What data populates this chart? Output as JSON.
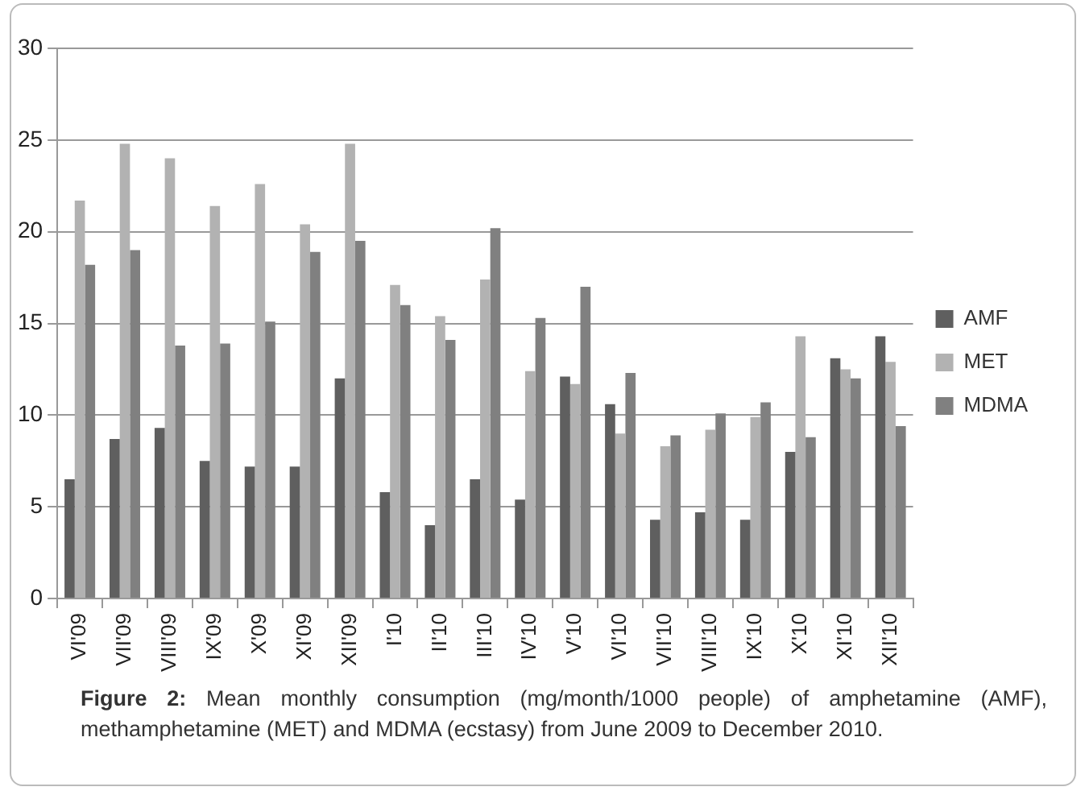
{
  "chart_data": {
    "type": "bar",
    "categories": [
      "VI'09",
      "VII'09",
      "VIII'09",
      "IX'09",
      "X'09",
      "XI'09",
      "XII'09",
      "I'10",
      "II'10",
      "III'10",
      "IV'10",
      "V'10",
      "VI'10",
      "VII'10",
      "VIII'10",
      "IX'10",
      "X'10",
      "XI'10",
      "XII'10"
    ],
    "series": [
      {
        "name": "AMF",
        "color": "#5f5f5f",
        "values": [
          6.5,
          8.7,
          9.3,
          7.5,
          7.2,
          7.2,
          12.0,
          5.8,
          4.0,
          6.5,
          5.4,
          12.1,
          10.6,
          4.3,
          4.7,
          4.3,
          8.0,
          13.1,
          14.3
        ]
      },
      {
        "name": "MET",
        "color": "#b2b2b2",
        "values": [
          21.7,
          24.8,
          24.0,
          21.4,
          22.6,
          20.4,
          24.8,
          17.1,
          15.4,
          17.4,
          12.4,
          11.7,
          9.0,
          8.3,
          9.2,
          9.9,
          14.3,
          12.5,
          12.9
        ]
      },
      {
        "name": "MDMA",
        "color": "#808080",
        "values": [
          18.2,
          19.0,
          13.8,
          13.9,
          15.1,
          18.9,
          19.5,
          16.0,
          14.1,
          20.2,
          15.3,
          17.0,
          12.3,
          8.9,
          10.1,
          10.7,
          8.8,
          12.0,
          9.4
        ]
      }
    ],
    "ylim": [
      0,
      30
    ],
    "yticks": [
      0,
      5,
      10,
      15,
      20,
      25,
      30
    ],
    "grid": "y",
    "legend": "right",
    "annotations": [
      "Figure 2: Mean monthly consumption (mg/month/1000 people) of amphetamine (AMF), methamphetamine (MET) and MDMA (ecstasy) from June 2009 to December 2010."
    ]
  }
}
